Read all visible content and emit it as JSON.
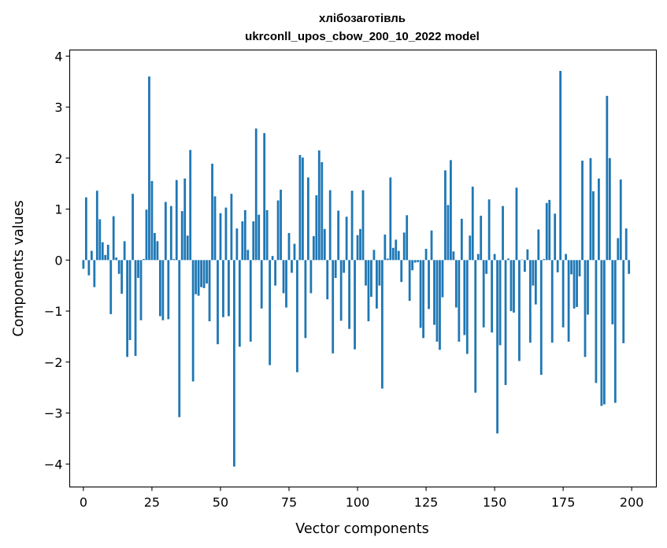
{
  "chart_data": {
    "type": "bar",
    "title": "хлібозаготівль",
    "subtitle": "ukrconll_upos_cbow_200_10_2022 model",
    "xlabel": "Vector components",
    "ylabel": "Components values",
    "xlim": [
      -5,
      209
    ],
    "ylim": [
      -4.45,
      4.12
    ],
    "xticks": [
      0,
      25,
      50,
      75,
      100,
      125,
      150,
      175,
      200
    ],
    "yticks": [
      -4,
      -3,
      -2,
      -1,
      0,
      1,
      2,
      3,
      4
    ],
    "xtick_labels": [
      "0",
      "25",
      "50",
      "75",
      "100",
      "125",
      "150",
      "175",
      "200"
    ],
    "ytick_labels": [
      "−4",
      "−3",
      "−2",
      "−1",
      "0",
      "1",
      "2",
      "3",
      "4"
    ],
    "grid": false,
    "legend": "none",
    "color": "#1f77b4",
    "x": "0..199",
    "values": [
      -0.17,
      1.23,
      -0.3,
      0.18,
      -0.53,
      1.36,
      0.8,
      0.35,
      0.1,
      0.3,
      -1.06,
      0.86,
      0.05,
      -0.27,
      -0.66,
      0.37,
      -1.9,
      -1.57,
      1.3,
      -1.88,
      -0.35,
      -1.18,
      0.02,
      0.99,
      3.6,
      1.55,
      0.53,
      0.37,
      -1.1,
      -1.18,
      1.14,
      -1.16,
      1.06,
      0.02,
      1.57,
      -3.08,
      0.96,
      1.6,
      0.48,
      2.16,
      -2.38,
      -0.67,
      -0.7,
      -0.53,
      -0.55,
      -0.46,
      -1.2,
      1.89,
      1.25,
      -1.65,
      0.92,
      -1.12,
      1.03,
      -1.1,
      1.3,
      -4.05,
      0.62,
      -1.7,
      0.76,
      0.98,
      0.2,
      -1.6,
      0.76,
      2.58,
      0.89,
      -0.95,
      2.49,
      0.98,
      -2.06,
      0.08,
      -0.5,
      1.17,
      1.38,
      -0.65,
      -0.93,
      0.53,
      -0.25,
      0.32,
      -2.2,
      2.06,
      2.01,
      -1.53,
      1.62,
      -0.65,
      0.47,
      1.27,
      2.15,
      1.92,
      0.61,
      -0.77,
      1.37,
      -1.83,
      -0.35,
      0.97,
      -1.19,
      -0.25,
      0.85,
      -1.35,
      1.36,
      -1.75,
      0.49,
      0.61,
      1.37,
      -0.5,
      -1.2,
      -0.72,
      0.2,
      -0.95,
      -0.5,
      -2.52,
      0.5,
      0.03,
      1.62,
      0.24,
      0.4,
      0.18,
      -0.43,
      0.54,
      0.88,
      -0.8,
      -0.2,
      -0.05,
      -0.04,
      -1.33,
      -1.53,
      0.22,
      -0.96,
      0.58,
      -1.27,
      -1.6,
      -1.76,
      -0.73,
      1.76,
      1.08,
      1.96,
      0.17,
      -0.93,
      -1.6,
      0.81,
      -1.47,
      -1.84,
      0.48,
      1.44,
      -2.6,
      0.12,
      0.87,
      -1.32,
      -0.27,
      1.19,
      -1.42,
      0.12,
      -3.4,
      -1.67,
      1.06,
      -2.45,
      0.03,
      -1.0,
      -1.03,
      1.42,
      -1.98,
      0.01,
      -0.23,
      0.21,
      -1.62,
      -0.5,
      -0.87,
      0.6,
      -2.25,
      0.02,
      1.12,
      1.18,
      -1.62,
      0.91,
      -0.24,
      3.71,
      -1.32,
      0.12,
      -1.6,
      -0.28,
      -0.95,
      -0.92,
      -0.32,
      1.95,
      -1.9,
      -1.07,
      2.0,
      1.35,
      -2.41,
      1.6,
      -2.86,
      -2.83,
      3.22,
      2.0,
      -1.26,
      -2.8,
      0.43,
      1.58,
      -1.63,
      0.62,
      -0.27
    ]
  }
}
